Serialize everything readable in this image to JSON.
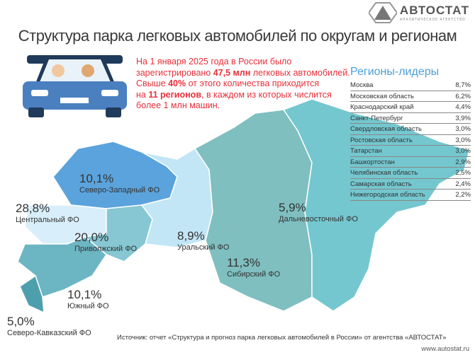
{
  "brand": {
    "name": "АВТОСТАТ",
    "tagline": "АНАЛИТИЧЕСКОЕ АГЕНТСТВО"
  },
  "title": "Структура парка легковых автомобилей по округам и регионам",
  "intro": {
    "l1": "На 1 января 2025 года в России было",
    "l2a": "зарегистрировано ",
    "l2b": "47,5 млн",
    "l2c": " легковых автомобилей.",
    "l3a": "Свыше ",
    "l3b": "40%",
    "l3c": " от этого количества приходится",
    "l4a": "на ",
    "l4b": "11 регионов",
    "l4c": ", в каждом из которых числится",
    "l5": "более 1 млн машин."
  },
  "leaders": {
    "title": "Регионы-лидеры",
    "rows": [
      {
        "name": "Москва",
        "value": "8,7%"
      },
      {
        "name": "Московская область",
        "value": "6,2%"
      },
      {
        "name": "Краснодарский край",
        "value": "4,4%"
      },
      {
        "name": "Санкт-Петербург",
        "value": "3,9%"
      },
      {
        "name": "Свердловская область",
        "value": "3,0%"
      },
      {
        "name": "Ростовская область",
        "value": "3,0%"
      },
      {
        "name": "Татарстан",
        "value": "3,0%"
      },
      {
        "name": "Башкортостан",
        "value": "2,9%"
      },
      {
        "name": "Челябинская область",
        "value": "2,5%"
      },
      {
        "name": "Самарская область",
        "value": "2,4%"
      },
      {
        "name": "Нижегородская область",
        "value": "2,2%"
      }
    ]
  },
  "districts": [
    {
      "name": "Северо-Западный ФО",
      "value": "10,1%",
      "color": "#5ba3dc"
    },
    {
      "name": "Центральный ФО",
      "value": "28,8%",
      "color": "#d8eefa"
    },
    {
      "name": "Приволжский ФО",
      "value": "20,0%",
      "color": "#86c7d3"
    },
    {
      "name": "Уральский ФО",
      "value": "8,9%",
      "color": "#c2e6f6"
    },
    {
      "name": "Сибирский ФО",
      "value": "11,3%",
      "color": "#7fbfc0"
    },
    {
      "name": "Дальневосточный ФО",
      "value": "5,9%",
      "color": "#74c7cf"
    },
    {
      "name": "Южный ФО",
      "value": "10,1%",
      "color": "#6cb6c4"
    },
    {
      "name": "Северо-Кавказский ФО",
      "value": "5,0%",
      "color": "#4e9fae"
    }
  ],
  "source": "Источник: отчет «Структура и прогноз парка легковых автомобилей в России» от агентства «АВТОСТАТ»",
  "site": "www.autostat.ru"
}
